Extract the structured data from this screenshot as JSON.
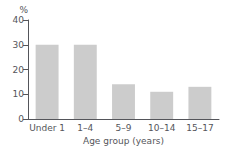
{
  "chart_data": {
    "type": "bar",
    "categories": [
      "Under 1",
      "1–4",
      "5–9",
      "10–14",
      "15–17"
    ],
    "values": [
      30,
      30,
      14,
      11,
      13
    ],
    "color": "#cccccc",
    "xlabel": "Age group (years)",
    "ylabel": "%",
    "ylim": [
      0,
      40
    ],
    "yticks": [
      0,
      10,
      20,
      30,
      40
    ],
    "grid": false
  }
}
